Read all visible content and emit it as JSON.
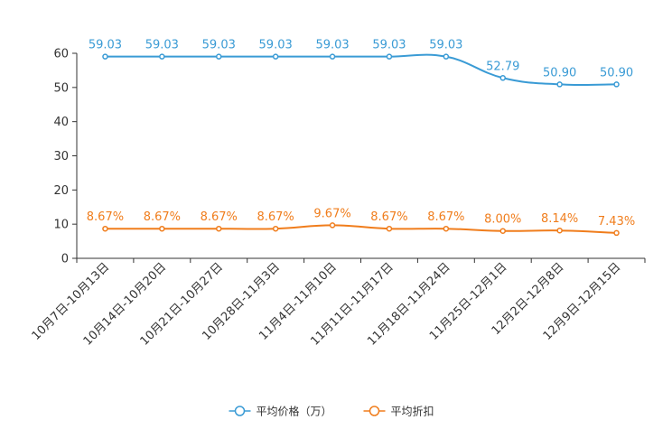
{
  "chart_data": {
    "type": "line",
    "title": "",
    "xlabel": "",
    "ylabel": "",
    "ylim": [
      0,
      60
    ],
    "yticks": [
      0,
      10,
      20,
      30,
      40,
      50,
      60
    ],
    "categories": [
      "10月7日-10月13日",
      "10月14日-10月20日",
      "10月21日-10月27日",
      "10月28日-11月3日",
      "11月4日-11月10日",
      "11月11日-11月17日",
      "11月18日-11月24日",
      "11月25日-12月1日",
      "12月2日-12月8日",
      "12月9日-12月15日"
    ],
    "series": [
      {
        "name": "平均价格（万）",
        "color": "#3a9bd5",
        "values": [
          59.03,
          59.03,
          59.03,
          59.03,
          59.03,
          59.03,
          59.03,
          52.79,
          50.9,
          50.9
        ],
        "labels": [
          "59.03",
          "59.03",
          "59.03",
          "59.03",
          "59.03",
          "59.03",
          "59.03",
          "52.79",
          "50.90",
          "50.90"
        ]
      },
      {
        "name": "平均折扣",
        "color": "#f07d1c",
        "values": [
          8.67,
          8.67,
          8.67,
          8.67,
          9.67,
          8.67,
          8.67,
          8.0,
          8.14,
          7.43
        ],
        "labels": [
          "8.67%",
          "8.67%",
          "8.67%",
          "8.67%",
          "9.67%",
          "8.67%",
          "8.67%",
          "8.00%",
          "8.14%",
          "7.43%"
        ]
      }
    ],
    "legend": "bottom-center",
    "grid": false
  }
}
